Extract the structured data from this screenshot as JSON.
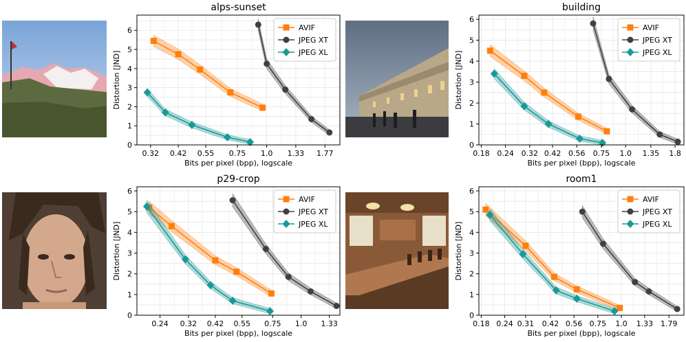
{
  "chart_data": [
    {
      "type": "line",
      "title": "alps-sunset",
      "xlabel": "Bits per pixel (bpp), logscale",
      "ylabel": "Distortion [JND]",
      "xscale": "log",
      "xlim": [
        0.28,
        2.05
      ],
      "ylim": [
        0,
        6.8
      ],
      "xticks": [
        "0.32",
        "0.42",
        "0.55",
        "0.75",
        "1.0",
        "1.33",
        "1.77"
      ],
      "yticks": [
        "0",
        "1",
        "2",
        "3",
        "4",
        "5",
        "6"
      ],
      "grid": true,
      "legend_position": "top-right",
      "series": [
        {
          "name": "AVIF",
          "color": "#ff7f0e",
          "marker": "square",
          "x": [
            0.33,
            0.42,
            0.52,
            0.7,
            0.96
          ],
          "y": [
            5.45,
            4.75,
            3.95,
            2.75,
            1.95
          ]
        },
        {
          "name": "JPEG XT",
          "color": "#404040",
          "marker": "circle",
          "x": [
            0.92,
            1.0,
            1.2,
            1.55,
            1.85
          ],
          "y": [
            6.3,
            4.25,
            2.9,
            1.35,
            0.65
          ]
        },
        {
          "name": "JPEG XL",
          "color": "#1a9996",
          "marker": "diamond",
          "x": [
            0.31,
            0.37,
            0.48,
            0.68,
            0.85
          ],
          "y": [
            2.75,
            1.7,
            1.05,
            0.4,
            0.15
          ]
        }
      ]
    },
    {
      "type": "line",
      "title": "building",
      "xlabel": "Bits per pixel (bpp), logscale",
      "ylabel": "Distortion [JND]",
      "xscale": "log",
      "xlim": [
        0.175,
        2.0
      ],
      "ylim": [
        0,
        6.2
      ],
      "xticks": [
        "0.18",
        "0.24",
        "0.32",
        "0.42",
        "0.56",
        "0.75",
        "1.0",
        "1.35",
        "1.8"
      ],
      "yticks": [
        "0",
        "1",
        "2",
        "3",
        "4",
        "5",
        "6"
      ],
      "grid": true,
      "legend_position": "top-right",
      "series": [
        {
          "name": "AVIF",
          "color": "#ff7f0e",
          "marker": "square",
          "x": [
            0.2,
            0.3,
            0.38,
            0.57,
            0.8
          ],
          "y": [
            4.5,
            3.3,
            2.5,
            1.35,
            0.65
          ]
        },
        {
          "name": "JPEG XT",
          "color": "#404040",
          "marker": "circle",
          "x": [
            0.68,
            0.82,
            1.08,
            1.5,
            1.86
          ],
          "y": [
            5.8,
            3.15,
            1.7,
            0.5,
            0.15
          ]
        },
        {
          "name": "JPEG XL",
          "color": "#1a9996",
          "marker": "diamond",
          "x": [
            0.21,
            0.3,
            0.4,
            0.58,
            0.76
          ],
          "y": [
            3.4,
            1.85,
            1.0,
            0.3,
            0.1
          ]
        }
      ]
    },
    {
      "type": "line",
      "title": "p29-crop",
      "xlabel": "Bits per pixel (bpp), logscale",
      "ylabel": "Distortion [JND]",
      "xscale": "log",
      "xlim": [
        0.19,
        1.48
      ],
      "ylim": [
        0,
        6.2
      ],
      "xticks": [
        "0.24",
        "0.32",
        "0.42",
        "0.55",
        "0.75",
        "1.0",
        "1.33"
      ],
      "yticks": [
        "0",
        "1",
        "2",
        "3",
        "4",
        "5",
        "6"
      ],
      "grid": true,
      "legend_position": "top-right",
      "series": [
        {
          "name": "AVIF",
          "color": "#ff7f0e",
          "marker": "square",
          "x": [
            0.215,
            0.27,
            0.42,
            0.52,
            0.74
          ],
          "y": [
            5.2,
            4.3,
            2.65,
            2.1,
            1.05
          ]
        },
        {
          "name": "JPEG XT",
          "color": "#404040",
          "marker": "circle",
          "x": [
            0.5,
            0.7,
            0.88,
            1.1,
            1.43
          ],
          "y": [
            5.55,
            3.2,
            1.85,
            1.15,
            0.45
          ]
        },
        {
          "name": "JPEG XL",
          "color": "#1a9996",
          "marker": "diamond",
          "x": [
            0.21,
            0.31,
            0.4,
            0.5,
            0.73
          ],
          "y": [
            5.25,
            2.7,
            1.45,
            0.7,
            0.2
          ]
        }
      ]
    },
    {
      "type": "line",
      "title": "room1",
      "xlabel": "Bits per pixel (bpp), logscale",
      "ylabel": "Distortion [JND]",
      "xscale": "log",
      "xlim": [
        0.175,
        2.15
      ],
      "ylim": [
        0,
        6.2
      ],
      "xticks": [
        "0.18",
        "0.24",
        "0.31",
        "0.42",
        "0.56",
        "0.75",
        "1.0",
        "1.33",
        "1.79"
      ],
      "yticks": [
        "0",
        "1",
        "2",
        "3",
        "4",
        "5",
        "6"
      ],
      "grid": true,
      "legend_position": "top-right",
      "series": [
        {
          "name": "AVIF",
          "color": "#ff7f0e",
          "marker": "square",
          "x": [
            0.19,
            0.31,
            0.44,
            0.58,
            0.98
          ],
          "y": [
            5.1,
            3.35,
            1.85,
            1.25,
            0.35
          ]
        },
        {
          "name": "JPEG XT",
          "color": "#404040",
          "marker": "circle",
          "x": [
            0.62,
            0.8,
            1.18,
            1.4,
            1.98
          ],
          "y": [
            5.0,
            3.45,
            1.6,
            1.15,
            0.3
          ]
        },
        {
          "name": "JPEG XL",
          "color": "#1a9996",
          "marker": "diamond",
          "x": [
            0.2,
            0.3,
            0.45,
            0.58,
            0.92
          ],
          "y": [
            4.85,
            2.95,
            1.2,
            0.8,
            0.2
          ]
        }
      ]
    }
  ],
  "photos": [
    {
      "subject": "alps-sunset",
      "sky": "#8fb0d8",
      "accent": "#e8a0a8",
      "ground": "#5a6a3a"
    },
    {
      "subject": "building",
      "sky": "#7f8ea2",
      "accent": "#c8b088",
      "ground": "#3a3a3e"
    },
    {
      "subject": "p29-crop",
      "sky": "#5a4a40",
      "accent": "#d6a88c",
      "ground": "#3a2a22"
    },
    {
      "subject": "room1",
      "sky": "#8a6040",
      "accent": "#f0d8b0",
      "ground": "#6a4428"
    }
  ]
}
